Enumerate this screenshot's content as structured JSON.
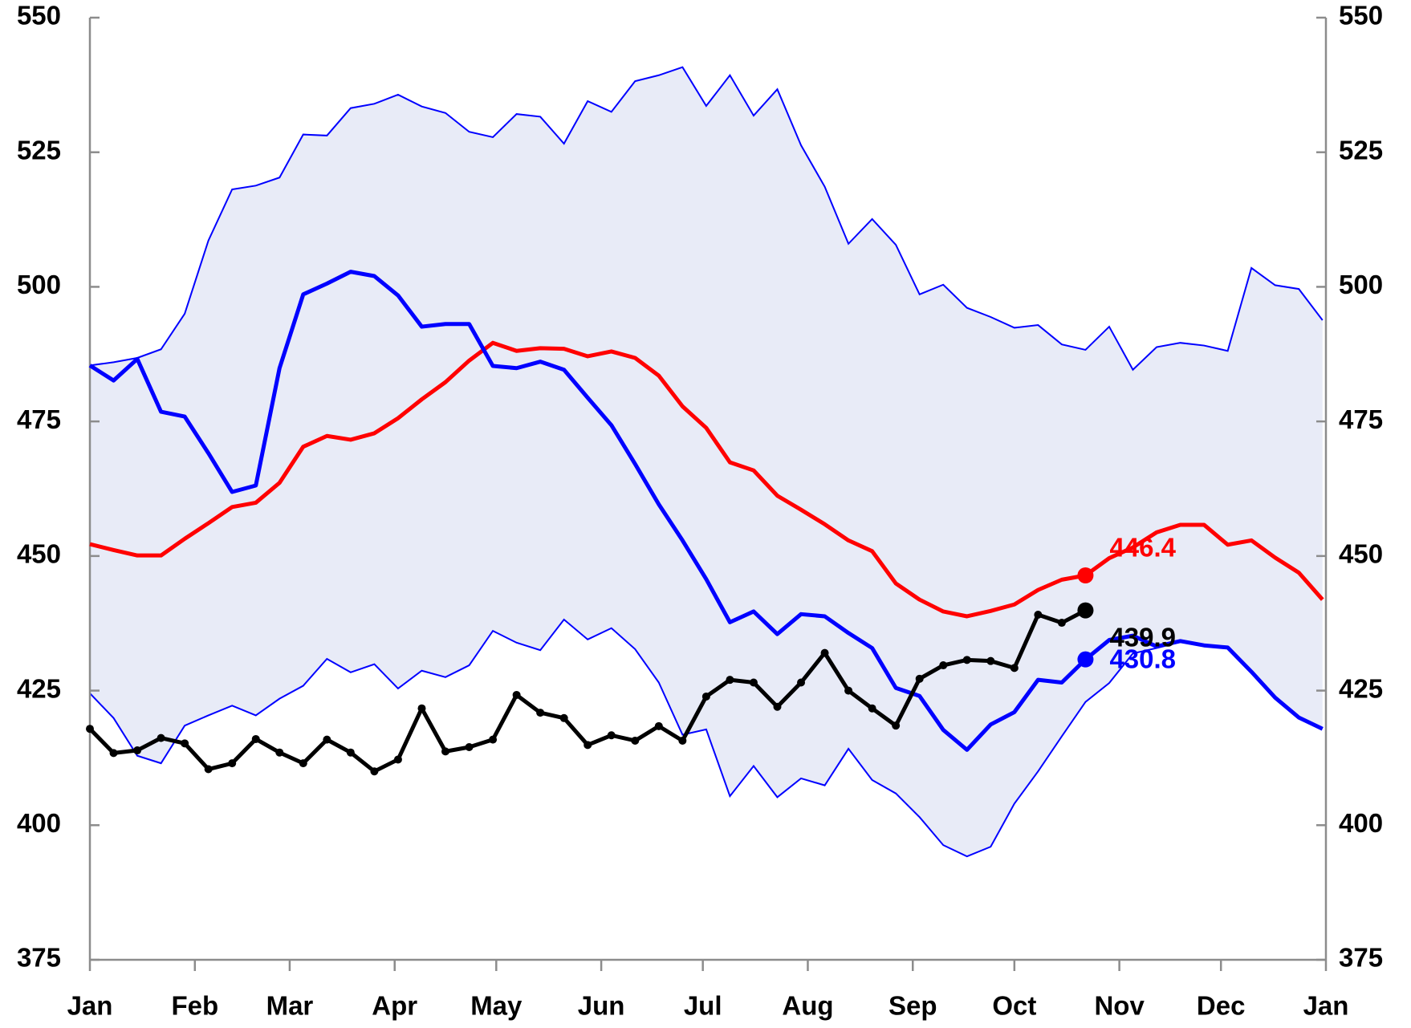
{
  "chart_data": {
    "type": "line",
    "x": [
      0,
      7,
      14,
      21,
      28,
      35,
      42,
      49,
      56,
      63,
      70,
      77,
      84,
      91,
      98,
      105,
      112,
      119,
      126,
      133,
      140,
      147,
      154,
      161,
      168,
      175,
      182,
      189,
      196,
      203,
      210,
      217,
      224,
      231,
      238,
      245,
      252,
      259,
      266,
      273,
      280,
      287,
      294,
      301,
      308,
      315,
      322,
      329,
      336,
      343,
      350,
      357,
      364
    ],
    "xlim": [
      0,
      365
    ],
    "xticks": [
      {
        "value": 0,
        "label": "Jan"
      },
      {
        "value": 31,
        "label": "Feb"
      },
      {
        "value": 59,
        "label": "Mar"
      },
      {
        "value": 90,
        "label": "Apr"
      },
      {
        "value": 120,
        "label": "May"
      },
      {
        "value": 151,
        "label": "Jun"
      },
      {
        "value": 181,
        "label": "Jul"
      },
      {
        "value": 212,
        "label": "Aug"
      },
      {
        "value": 243,
        "label": "Sep"
      },
      {
        "value": 273,
        "label": "Oct"
      },
      {
        "value": 304,
        "label": "Nov"
      },
      {
        "value": 334,
        "label": "Dec"
      },
      {
        "value": 365,
        "label": "Jan"
      }
    ],
    "ylim": [
      375,
      550
    ],
    "yticks": [
      375,
      400,
      425,
      450,
      475,
      500,
      525,
      550
    ],
    "y2lim": [
      375,
      550
    ],
    "y2ticks": [
      375,
      400,
      425,
      450,
      475,
      500,
      525,
      550
    ],
    "band": {
      "color": "#0000ff",
      "fill": "#e8ebf7",
      "upper": [
        485.4,
        486,
        486.8,
        488.4,
        495,
        508.6,
        518.1,
        518.8,
        520.3,
        528.3,
        528.1,
        533.2,
        534,
        535.7,
        533.5,
        532.3,
        528.8,
        527.8,
        532.1,
        531.6,
        526.6,
        534.5,
        532.5,
        538.2,
        539.3,
        540.8,
        533.6,
        539.3,
        531.8,
        536.7,
        526.3,
        518.6,
        508,
        512.6,
        507.8,
        498.6,
        500.4,
        496.1,
        494.4,
        492.4,
        492.9,
        489.3,
        488.3,
        492.6,
        484.6,
        488.8,
        489.6,
        489.1,
        488.1,
        503.5,
        500.3,
        499.6,
        493.8
      ],
      "lower": [
        424.5,
        419.9,
        412.9,
        411.5,
        418.5,
        420.4,
        422.2,
        420.4,
        423.5,
        425.9,
        430.9,
        428.4,
        429.9,
        425.4,
        428.7,
        427.5,
        429.7,
        436.1,
        433.9,
        432.5,
        438.2,
        434.5,
        436.6,
        432.7,
        426.5,
        416.8,
        417.8,
        405.4,
        411,
        405.2,
        408.7,
        407.4,
        414.2,
        408.4,
        405.9,
        401.5,
        396.3,
        394.2,
        396,
        404,
        410,
        416.5,
        422.9,
        426.4,
        431.9,
        432.9,
        434,
        433.5,
        433,
        428.5,
        423.5,
        420,
        418
      ]
    },
    "marker_x": 294,
    "series": [
      {
        "color": "#ff0000",
        "values": [
          452.2,
          451.1,
          450.1,
          450.1,
          453.2,
          456.1,
          459.1,
          459.9,
          463.6,
          470.3,
          472.3,
          471.6,
          472.8,
          475.6,
          479.1,
          482.3,
          486.3,
          489.6,
          488.1,
          488.6,
          488.5,
          487.1,
          488,
          486.8,
          483.5,
          477.8,
          473.8,
          467.4,
          465.9,
          461.2,
          458.6,
          455.9,
          452.9,
          450.9,
          444.9,
          441.9,
          439.7,
          438.8,
          439.8,
          441,
          443.7,
          445.6,
          446.4,
          449.6,
          451.6,
          454.4,
          455.8,
          455.8,
          452.1,
          452.9,
          449.7,
          446.9,
          441.9
        ]
      },
      {
        "color": "#0000ff",
        "values": [
          485.4,
          482.6,
          486.6,
          476.8,
          475.9,
          469.1,
          461.9,
          463.1,
          484.9,
          498.6,
          500.6,
          502.8,
          502,
          498.4,
          492.6,
          493.1,
          493.1,
          485.3,
          484.9,
          486.1,
          484.6,
          479.4,
          474.3,
          467.1,
          459.6,
          452.9,
          445.7,
          437.7,
          439.7,
          435.5,
          439.2,
          438.8,
          435.7,
          432.9,
          425.5,
          424,
          417.7,
          414,
          418.7,
          421,
          427,
          426.5,
          430.8,
          434.4,
          435.2,
          433.2,
          434.2,
          433.4,
          433,
          428.5,
          423.7,
          420,
          417.9
        ]
      },
      {
        "color": "#000000",
        "markers": true,
        "values": [
          417.9,
          413.4,
          413.9,
          416.2,
          415.2,
          410.4,
          411.5,
          416,
          413.5,
          411.5,
          415.9,
          413.5,
          410,
          412.2,
          421.7,
          413.7,
          414.5,
          415.9,
          424.2,
          420.9,
          419.9,
          414.9,
          416.7,
          415.7,
          418.4,
          415.7,
          423.9,
          427,
          426.5,
          422,
          426.5,
          432,
          425,
          421.7,
          418.5,
          427.2,
          429.7,
          430.7,
          430.5,
          429.2,
          439.1,
          437.6,
          439.9,
          null,
          null,
          null,
          null,
          null,
          null,
          null,
          null,
          null,
          null
        ]
      }
    ]
  }
}
